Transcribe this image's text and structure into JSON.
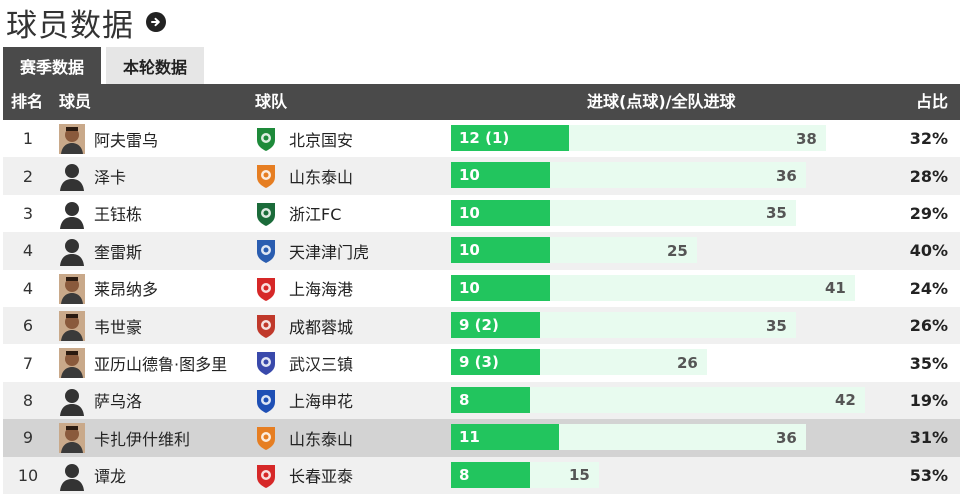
{
  "title": "球员数据",
  "tabs": [
    {
      "label": "赛季数据",
      "active": true
    },
    {
      "label": "本轮数据",
      "active": false
    }
  ],
  "columns": {
    "rank": "排名",
    "player": "球员",
    "team": "球队",
    "goals": "进球(点球)/全队进球",
    "ratio": "占比"
  },
  "accent_green": "#22c55e",
  "max_team_goals": 42,
  "rows": [
    {
      "rank": "1",
      "player": "阿夫雷乌",
      "team": "北京国安",
      "goals_label": "12 (1)",
      "goals": 12,
      "team_goals": 38,
      "team_goals_label": "38",
      "ratio": "32%",
      "avatar": "photo",
      "crest_color": "#1e8a3a"
    },
    {
      "rank": "2",
      "player": "泽卡",
      "team": "山东泰山",
      "goals_label": "10",
      "goals": 10,
      "team_goals": 36,
      "team_goals_label": "36",
      "ratio": "28%",
      "avatar": "silhouette",
      "crest_color": "#e67e22"
    },
    {
      "rank": "3",
      "player": "王钰栋",
      "team": "浙江FC",
      "goals_label": "10",
      "goals": 10,
      "team_goals": 35,
      "team_goals_label": "35",
      "ratio": "29%",
      "avatar": "silhouette",
      "crest_color": "#1b6b3a"
    },
    {
      "rank": "4",
      "player": "奎雷斯",
      "team": "天津津门虎",
      "goals_label": "10",
      "goals": 10,
      "team_goals": 25,
      "team_goals_label": "25",
      "ratio": "40%",
      "avatar": "silhouette",
      "crest_color": "#2a5db0"
    },
    {
      "rank": "4",
      "player": "莱昂纳多",
      "team": "上海海港",
      "goals_label": "10",
      "goals": 10,
      "team_goals": 41,
      "team_goals_label": "41",
      "ratio": "24%",
      "avatar": "photo",
      "crest_color": "#d62828"
    },
    {
      "rank": "6",
      "player": "韦世豪",
      "team": "成都蓉城",
      "goals_label": "9 (2)",
      "goals": 9,
      "team_goals": 35,
      "team_goals_label": "35",
      "ratio": "26%",
      "avatar": "photo",
      "crest_color": "#c0392b"
    },
    {
      "rank": "7",
      "player": "亚历山德鲁·图多里",
      "team": "武汉三镇",
      "goals_label": "9 (3)",
      "goals": 9,
      "team_goals": 26,
      "team_goals_label": "26",
      "ratio": "35%",
      "avatar": "photo",
      "crest_color": "#3949ab"
    },
    {
      "rank": "8",
      "player": "萨乌洛",
      "team": "上海申花",
      "goals_label": "8",
      "goals": 8,
      "team_goals": 42,
      "team_goals_label": "42",
      "ratio": "19%",
      "avatar": "silhouette",
      "crest_color": "#1e4fb5"
    },
    {
      "rank": "9",
      "player": "卡扎伊什维利",
      "team": "山东泰山",
      "goals_label": "11",
      "goals": 11,
      "team_goals": 36,
      "team_goals_label": "36",
      "ratio": "31%",
      "avatar": "photo",
      "crest_color": "#e67e22"
    },
    {
      "rank": "10",
      "player": "谭龙",
      "team": "长春亚泰",
      "goals_label": "8",
      "goals": 8,
      "team_goals": 15,
      "team_goals_label": "15",
      "ratio": "53%",
      "avatar": "silhouette",
      "crest_color": "#d62828"
    }
  ]
}
